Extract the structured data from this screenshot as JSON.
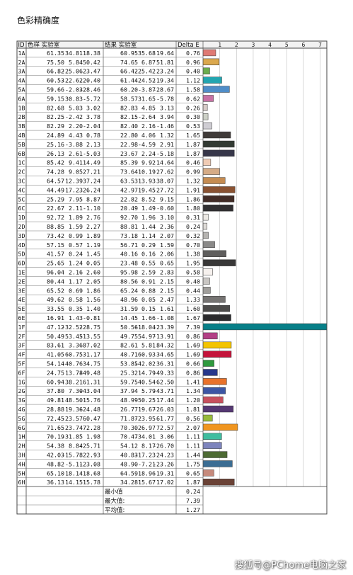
{
  "page": {
    "title": "色彩精确度",
    "watermark": "搜狐号@PChome电脑之家"
  },
  "chart_data": {
    "type": "table",
    "headers": {
      "id": "ID",
      "ref": "色样 实验室",
      "result": "结果 实验室",
      "delta": "Delta E"
    },
    "axis_ticks": [
      1,
      2,
      3,
      4,
      5,
      6,
      7
    ],
    "xlim": [
      0,
      7.4
    ],
    "rows": [
      {
        "id": "1A",
        "ref": [
          61.35,
          34.81,
          18.38
        ],
        "res": [
          60.95,
          35.68,
          19.64
        ],
        "de": 0.76,
        "color": "#df7a74"
      },
      {
        "id": "2A",
        "ref": [
          75.5,
          5.84,
          50.42
        ],
        "res": [
          74.65,
          6.87,
          51.81
        ],
        "de": 0.96,
        "color": "#dba84e"
      },
      {
        "id": "3A",
        "ref": [
          66.82,
          -25.06,
          23.47
        ],
        "res": [
          66.42,
          -25.42,
          23.24
        ],
        "de": 0.4,
        "color": "#6cad4e"
      },
      {
        "id": "4A",
        "ref": [
          60.53,
          -22.62,
          -20.4
        ],
        "res": [
          61.44,
          -24.52,
          -19.34
        ],
        "de": 1.12,
        "color": "#23a5b0"
      },
      {
        "id": "5A",
        "ref": [
          59.66,
          -2.03,
          -28.46
        ],
        "res": [
          60.2,
          -3.87,
          -28.67
        ],
        "de": 1.58,
        "color": "#4f8dc8"
      },
      {
        "id": "6A",
        "ref": [
          59.15,
          30.83,
          -5.72
        ],
        "res": [
          58.57,
          31.65,
          -5.78
        ],
        "de": 0.62,
        "color": "#c770a4"
      },
      {
        "id": "1B",
        "ref": [
          82.68,
          5.03,
          3.02
        ],
        "res": [
          82.83,
          4.85,
          3.13
        ],
        "de": 0.26,
        "color": "#d8ccc8"
      },
      {
        "id": "2B",
        "ref": [
          82.25,
          -2.42,
          3.78
        ],
        "res": [
          82.15,
          -2.64,
          3.94
        ],
        "de": 0.3,
        "color": "#ccd0c6"
      },
      {
        "id": "3B",
        "ref": [
          82.29,
          2.2,
          -2.04
        ],
        "res": [
          82.4,
          2.16,
          -1.46
        ],
        "de": 0.53,
        "color": "#cfcdd3"
      },
      {
        "id": "4B",
        "ref": [
          24.89,
          4.43,
          0.78
        ],
        "res": [
          22.8,
          4.06,
          1.32
        ],
        "de": 1.65,
        "color": "#3f3a38"
      },
      {
        "id": "5B",
        "ref": [
          25.16,
          -3.88,
          2.13
        ],
        "res": [
          22.98,
          -4.59,
          2.91
        ],
        "de": 1.87,
        "color": "#323a33"
      },
      {
        "id": "6B",
        "ref": [
          26.13,
          2.61,
          -5.03
        ],
        "res": [
          23.67,
          2.24,
          -5.18
        ],
        "de": 1.87,
        "color": "#37374a"
      },
      {
        "id": "1C",
        "ref": [
          85.42,
          9.41,
          14.49
        ],
        "res": [
          85.39,
          9.92,
          14.64
        ],
        "de": 0.46,
        "color": "#f0cbb4"
      },
      {
        "id": "2C",
        "ref": [
          74.28,
          9.05,
          27.21
        ],
        "res": [
          73.64,
          10.19,
          27.62
        ],
        "de": 0.99,
        "color": "#d5ab86"
      },
      {
        "id": "3C",
        "ref": [
          64.57,
          12.39,
          37.24
        ],
        "res": [
          63.53,
          13.93,
          38.07
        ],
        "de": 1.32,
        "color": "#c58c52"
      },
      {
        "id": "4C",
        "ref": [
          44.49,
          17.23,
          26.24
        ],
        "res": [
          42.97,
          19.45,
          27.72
        ],
        "de": 1.91,
        "color": "#8a5232"
      },
      {
        "id": "5C",
        "ref": [
          25.29,
          7.95,
          8.87
        ],
        "res": [
          22.82,
          8.52,
          9.15
        ],
        "de": 1.86,
        "color": "#412c27"
      },
      {
        "id": "6C",
        "ref": [
          22.67,
          2.11,
          -1.1
        ],
        "res": [
          20.49,
          1.49,
          -0.6
        ],
        "de": 1.8,
        "color": "#302f31"
      },
      {
        "id": "1D",
        "ref": [
          92.72,
          1.89,
          2.76
        ],
        "res": [
          92.7,
          1.96,
          3.1
        ],
        "de": 0.31,
        "color": "#edeae5"
      },
      {
        "id": "2D",
        "ref": [
          88.85,
          1.59,
          2.27
        ],
        "res": [
          88.81,
          1.44,
          2.36
        ],
        "de": 0.24,
        "color": "#dedbd7"
      },
      {
        "id": "3D",
        "ref": [
          73.42,
          0.99,
          1.89
        ],
        "res": [
          73.18,
          1.14,
          2.07
        ],
        "de": 0.32,
        "color": "#b5b3b0"
      },
      {
        "id": "4D",
        "ref": [
          57.15,
          0.57,
          1.19
        ],
        "res": [
          56.71,
          0.29,
          1.59
        ],
        "de": 0.7,
        "color": "#8a8988"
      },
      {
        "id": "5D",
        "ref": [
          41.57,
          0.24,
          1.45
        ],
        "res": [
          40.16,
          0.16,
          2.06
        ],
        "de": 1.38,
        "color": "#5f5e5d"
      },
      {
        "id": "6D",
        "ref": [
          25.65,
          1.24,
          0.05
        ],
        "res": [
          23.48,
          0.55,
          0.65
        ],
        "de": 1.95,
        "color": "#393838"
      },
      {
        "id": "1E",
        "ref": [
          96.04,
          2.16,
          2.6
        ],
        "res": [
          95.98,
          2.59,
          2.83
        ],
        "de": 0.58,
        "color": "#f6f1ee"
      },
      {
        "id": "2E",
        "ref": [
          80.44,
          1.17,
          2.05
        ],
        "res": [
          80.56,
          0.91,
          2.15
        ],
        "de": 0.4,
        "color": "#c9c6c3"
      },
      {
        "id": "3E",
        "ref": [
          65.52,
          0.69,
          1.86
        ],
        "res": [
          65.24,
          0.88,
          2.15
        ],
        "de": 0.44,
        "color": "#a09e9b"
      },
      {
        "id": "4E",
        "ref": [
          49.62,
          0.58,
          1.56
        ],
        "res": [
          48.96,
          0.05,
          2.47
        ],
        "de": 1.33,
        "color": "#767473"
      },
      {
        "id": "5E",
        "ref": [
          33.55,
          0.35,
          1.4
        ],
        "res": [
          31.59,
          0.15,
          1.61
        ],
        "de": 1.6,
        "color": "#4c4b4a"
      },
      {
        "id": "6E",
        "ref": [
          16.91,
          1.43,
          -0.81
        ],
        "res": [
          14.45,
          1.66,
          -1.08
        ],
        "de": 1.67,
        "color": "#2a2a2c"
      },
      {
        "id": "1F",
        "ref": [
          47.12,
          -32.52,
          -28.75
        ],
        "res": [
          50.56,
          -18.04,
          -23.39
        ],
        "de": 7.39,
        "color": "#077f88"
      },
      {
        "id": "2F",
        "ref": [
          50.49,
          53.45,
          -13.55
        ],
        "res": [
          49.75,
          54.97,
          -13.91
        ],
        "de": 0.86,
        "color": "#b33f85"
      },
      {
        "id": "3F",
        "ref": [
          83.61,
          3.36,
          87.02
        ],
        "res": [
          82.61,
          5.81,
          84.32
        ],
        "de": 1.69,
        "color": "#f3c400"
      },
      {
        "id": "4F",
        "ref": [
          41.05,
          60.75,
          31.17
        ],
        "res": [
          40.71,
          60.93,
          34.65
        ],
        "de": 1.69,
        "color": "#c4133b"
      },
      {
        "id": "5F",
        "ref": [
          54.14,
          -40.76,
          34.75
        ],
        "res": [
          53.85,
          -42.02,
          36.31
        ],
        "de": 0.66,
        "color": "#2f9a3e"
      },
      {
        "id": "6F",
        "ref": [
          24.75,
          13.78,
          -49.48
        ],
        "res": [
          25.32,
          14.79,
          -49.33
        ],
        "de": 0.86,
        "color": "#27388c"
      },
      {
        "id": "1G",
        "ref": [
          60.94,
          38.21,
          61.31
        ],
        "res": [
          59.75,
          40.54,
          62.5
        ],
        "de": 1.41,
        "color": "#e9722a"
      },
      {
        "id": "2G",
        "ref": [
          37.8,
          7.3,
          -43.04
        ],
        "res": [
          37.94,
          5.79,
          -43.71
        ],
        "de": 1.34,
        "color": "#3c56a4"
      },
      {
        "id": "3G",
        "ref": [
          49.81,
          48.5,
          15.76
        ],
        "res": [
          48.99,
          50.25,
          17.44
        ],
        "de": 1.2,
        "color": "#c7505d"
      },
      {
        "id": "4G",
        "ref": [
          28.88,
          19.36,
          -24.48
        ],
        "res": [
          26.77,
          19.67,
          -26.03
        ],
        "de": 1.81,
        "color": "#553873"
      },
      {
        "id": "5G",
        "ref": [
          72.45,
          -23.57,
          60.47
        ],
        "res": [
          71.87,
          -23.95,
          61.77
        ],
        "de": 0.56,
        "color": "#97bb3a"
      },
      {
        "id": "6G",
        "ref": [
          71.65,
          23.74,
          72.28
        ],
        "res": [
          70.3,
          26.97,
          72.57
        ],
        "de": 2.07,
        "color": "#f0951f"
      },
      {
        "id": "1H",
        "ref": [
          70.19,
          -31.85,
          1.98
        ],
        "res": [
          70.47,
          -34.01,
          3.06
        ],
        "de": 1.11,
        "color": "#3fbd9f"
      },
      {
        "id": "2H",
        "ref": [
          54.38,
          8.84,
          -25.71
        ],
        "res": [
          54.12,
          8.17,
          -26.7
        ],
        "de": 1.11,
        "color": "#7d84bd"
      },
      {
        "id": "3H",
        "ref": [
          42.03,
          -15.78,
          22.93
        ],
        "res": [
          40.83,
          -17.23,
          24.23
        ],
        "de": 1.44,
        "color": "#4d6b34"
      },
      {
        "id": "4H",
        "ref": [
          48.82,
          -5.11,
          -23.08
        ],
        "res": [
          48.9,
          -7.21,
          -23.26
        ],
        "de": 1.75,
        "color": "#3b6d93"
      },
      {
        "id": "5H",
        "ref": [
          65.1,
          18.14,
          18.68
        ],
        "res": [
          64.59,
          18.96,
          19.31
        ],
        "de": 0.65,
        "color": "#c68a7c"
      },
      {
        "id": "6H",
        "ref": [
          36.13,
          14.15,
          15.78
        ],
        "res": [
          34.28,
          15.67,
          17.02
        ],
        "de": 1.87,
        "color": "#6a4236"
      }
    ],
    "summary": [
      {
        "label": "最小值",
        "value": "0.24"
      },
      {
        "label": "最大值:",
        "value": "7.39"
      },
      {
        "label": "平均值:",
        "value": "1.27"
      }
    ]
  }
}
